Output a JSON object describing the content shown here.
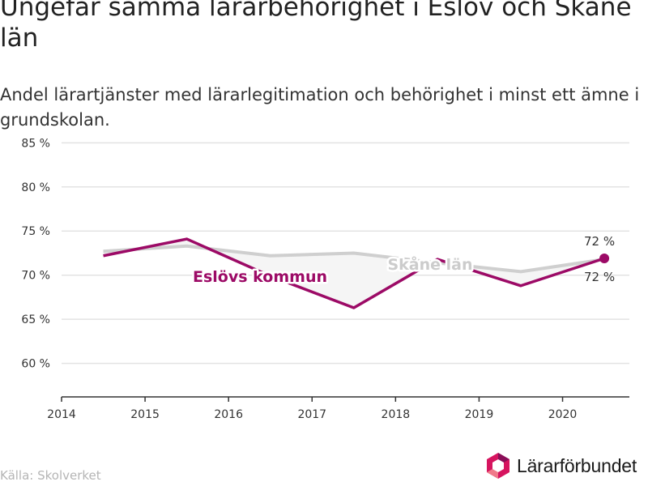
{
  "title": "Ungefär samma lärarbehörighet i Eslöv och Skåne län",
  "subtitle": "Andel lärartjänster med lärarlegitimation och behörighet i minst ett ämne i grundskolan.",
  "source": "Källa: Skolverket",
  "logo_text": "Lärarförbundet",
  "colors": {
    "eslov": "#9c0a66",
    "skane": "#cfcfcf",
    "skane_label": "#cccccc",
    "grid": "#e3e3e3",
    "axis": "#333333",
    "fill": "#f5f5f5"
  },
  "chart_data": {
    "type": "line",
    "x_ticks": [
      2014,
      2015,
      2016,
      2017,
      2018,
      2019,
      2020
    ],
    "xlim": [
      2014,
      2020.8
    ],
    "y_ticks": [
      60,
      65,
      70,
      75,
      80,
      85
    ],
    "y_tick_labels": [
      "60 %",
      "65 %",
      "70 %",
      "75 %",
      "80 %",
      "85 %"
    ],
    "ylim": [
      56.2,
      86.5
    ],
    "grid": true,
    "series": [
      {
        "name": "Skåne län",
        "x": [
          2014.5,
          2015.5,
          2016.5,
          2017.5,
          2018.5,
          2019.5,
          2020.5
        ],
        "values": [
          72.7,
          73.3,
          72.2,
          72.5,
          71.4,
          70.4,
          71.8
        ],
        "end_label": "72 %"
      },
      {
        "name": "Eslövs kommun",
        "x": [
          2014.5,
          2015.5,
          2016.5,
          2017.5,
          2018.5,
          2019.5,
          2020.5
        ],
        "values": [
          72.2,
          74.1,
          69.9,
          66.3,
          71.8,
          68.8,
          71.9
        ],
        "end_label": "72 %"
      }
    ]
  }
}
